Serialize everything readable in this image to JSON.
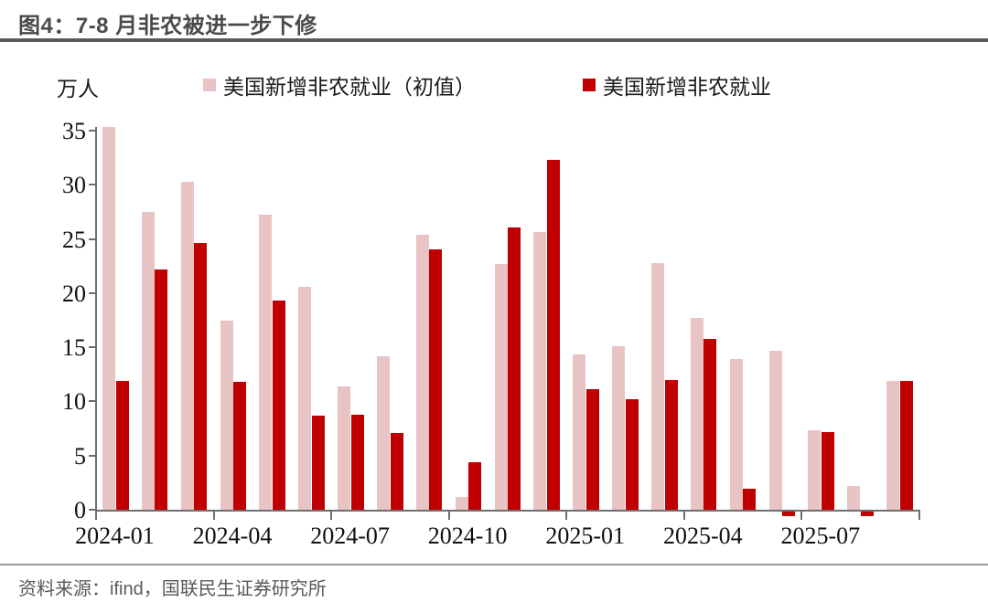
{
  "figure": {
    "title": "图4：7-8 月非农被进一步下修",
    "unit_label": "万人",
    "source": "资料来源：ifind，国联民生证券研究所"
  },
  "legend": [
    {
      "label": "美国新增非农就业（初值）",
      "color": "#E9C4C5"
    },
    {
      "label": "美国新增非农就业",
      "color": "#C00000"
    }
  ],
  "colors": {
    "initial_series": "#E9C4C5",
    "revised_series": "#C00000",
    "title_text": "#4a4a4a",
    "title_rule": "#595959",
    "axis": "#6e6e6e",
    "source_text": "#595959"
  },
  "chart_data": {
    "type": "bar",
    "title": "图4：7-8 月非农被进一步下修",
    "ylabel": "万人",
    "ylim": [
      0,
      35
    ],
    "yticks": [
      0,
      5,
      10,
      15,
      20,
      25,
      30,
      35
    ],
    "grid": false,
    "legend_position": "top",
    "categories": [
      "2024-01",
      "2024-02",
      "2024-03",
      "2024-04",
      "2024-05",
      "2024-06",
      "2024-07",
      "2024-08",
      "2024-09",
      "2024-10",
      "2024-11",
      "2024-12",
      "2025-01",
      "2025-02",
      "2025-03",
      "2025-04",
      "2025-05",
      "2025-06",
      "2025-07",
      "2025-08",
      "2025-09"
    ],
    "xtick_labels": [
      "2024-01",
      "2024-04",
      "2024-07",
      "2024-10",
      "2025-01",
      "2025-04",
      "2025-07"
    ],
    "series": [
      {
        "name": "美国新增非农就业（初值）",
        "color": "#E9C4C5",
        "values": [
          35.3,
          27.5,
          30.3,
          17.5,
          27.2,
          20.6,
          11.4,
          14.2,
          25.4,
          1.2,
          22.7,
          25.6,
          14.3,
          15.1,
          22.8,
          17.7,
          13.9,
          14.7,
          7.3,
          2.2,
          11.9
        ]
      },
      {
        "name": "美国新增非农就业",
        "color": "#C00000",
        "values": [
          11.9,
          22.2,
          24.6,
          11.8,
          19.3,
          8.7,
          8.8,
          7.1,
          24.0,
          4.4,
          26.1,
          32.3,
          11.1,
          10.2,
          12.0,
          15.8,
          1.9,
          -0.4,
          7.2,
          -0.4,
          11.9
        ]
      }
    ]
  }
}
